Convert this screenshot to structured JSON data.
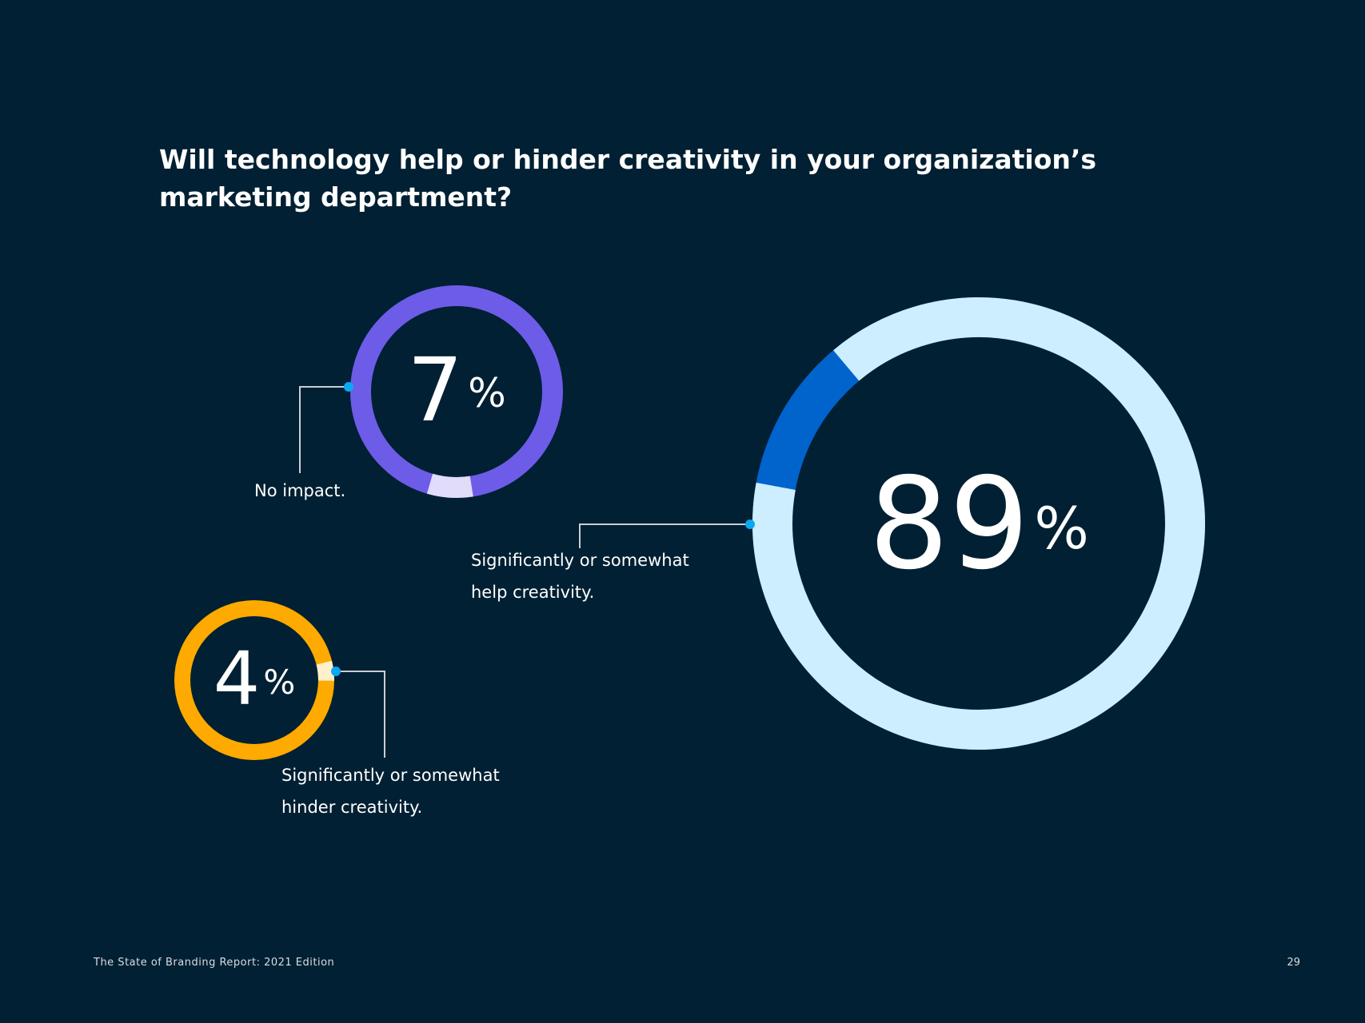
{
  "title": "Will technology help or hinder creativity in your organization’s marketing department?",
  "footer": {
    "report": "The State of Branding Report: 2021 Edition",
    "page_number": "29"
  },
  "colors": {
    "background": "#012033",
    "connector": "#c9ced3",
    "connector_dot": "#0aa8f0"
  },
  "chart_data": [
    {
      "type": "pie",
      "id": "no-impact",
      "value": 7,
      "value_label": "7",
      "unit": "%",
      "label": [
        "No impact."
      ],
      "colors": {
        "fill": "#6c5ce7",
        "highlight": "#e0dcfa"
      }
    },
    {
      "type": "pie",
      "id": "hinder",
      "value": 4,
      "value_label": "4",
      "unit": "%",
      "label": [
        "Significantly or somewhat",
        "hinder creativity."
      ],
      "colors": {
        "fill": "#ffaa00",
        "highlight": "#fff0cc"
      }
    },
    {
      "type": "pie",
      "id": "help",
      "value": 89,
      "value_label": "89",
      "unit": "%",
      "label": [
        "Significantly or somewhat",
        "help creativity."
      ],
      "colors": {
        "fill": "#0163cc",
        "highlight": "#cceeff"
      }
    }
  ]
}
